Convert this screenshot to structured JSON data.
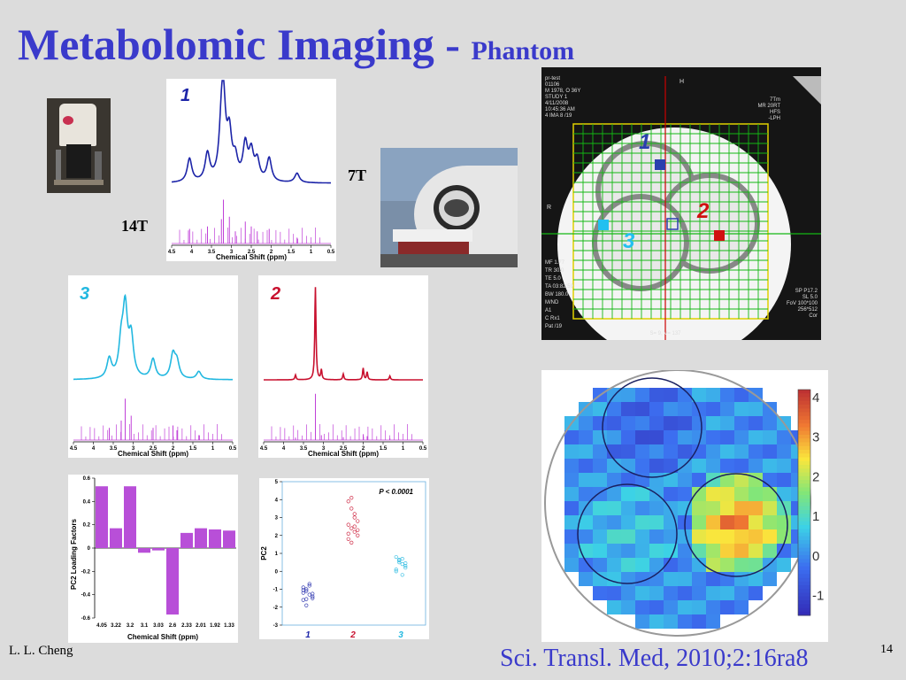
{
  "slide": {
    "title": "Metabolomic Imaging -",
    "title_sub": "Phantom",
    "author": "L. L. Cheng",
    "citation": "Sci. Transl. Med, 2010;2:16ra8",
    "slide_number": "14",
    "label_14t": "14T",
    "label_7t": "7T"
  },
  "colors": {
    "title": "#3a3acb",
    "phantom1": "#1c24a8",
    "phantom2": "#c8102e",
    "phantom3": "#22b8e0",
    "reference": "#c040d8",
    "bars": "#b84fd8"
  },
  "icons": {
    "photo_14t": "magnet-14t-photo",
    "photo_7t": "mri-scanner-7t-photo"
  },
  "chart_data": [
    {
      "type": "line",
      "panel": "spectrum-1",
      "label": "1",
      "xlabel": "Chemical Shift (ppm)",
      "xticks": [
        "4.5",
        "4",
        "3.5",
        "3",
        "2.5",
        "2",
        "1.5",
        "1",
        "0.5"
      ],
      "xlim": [
        4.5,
        0.5
      ],
      "peaks": [
        [
          4.05,
          0.3
        ],
        [
          3.6,
          0.35
        ],
        [
          3.25,
          0.5
        ],
        [
          3.2,
          0.9
        ],
        [
          3.05,
          0.55
        ],
        [
          2.9,
          0.25
        ],
        [
          2.65,
          0.45
        ],
        [
          2.5,
          0.35
        ],
        [
          2.35,
          0.25
        ],
        [
          2.05,
          0.3
        ],
        [
          1.35,
          0.12
        ]
      ]
    },
    {
      "type": "line",
      "panel": "spectrum-3",
      "label": "3",
      "xlabel": "Chemical Shift (ppm)",
      "xticks": [
        "4.5",
        "4",
        "3.5",
        "3",
        "2.5",
        "2",
        "1.5",
        "1",
        "0.5"
      ],
      "xlim": [
        4.5,
        0.5
      ],
      "peaks": [
        [
          3.6,
          0.25
        ],
        [
          3.3,
          0.4
        ],
        [
          3.2,
          0.85
        ],
        [
          3.05,
          0.5
        ],
        [
          2.5,
          0.25
        ],
        [
          2.0,
          0.3
        ],
        [
          1.9,
          0.2
        ],
        [
          1.35,
          0.1
        ]
      ]
    },
    {
      "type": "line",
      "panel": "spectrum-2",
      "label": "2",
      "xlabel": "Chemical Shift (ppm)",
      "xticks": [
        "4.5",
        "4",
        "3.5",
        "3",
        "2.5",
        "2",
        "1.5",
        "1",
        "0.5"
      ],
      "xlim": [
        4.5,
        0.5
      ],
      "peaks": [
        [
          3.7,
          0.05
        ],
        [
          3.2,
          0.95
        ],
        [
          3.05,
          0.1
        ],
        [
          2.5,
          0.06
        ],
        [
          2.0,
          0.12
        ],
        [
          1.9,
          0.08
        ],
        [
          1.33,
          0.04
        ]
      ]
    },
    {
      "type": "bar",
      "panel": "pc2-loadings",
      "ylabel": "PC2 Loading Factors",
      "xlabel": "Chemical Shift (ppm)",
      "categories": [
        "4.05",
        "3.22",
        "3.2",
        "3.1",
        "3.03",
        "2.6",
        "2.33",
        "2.01",
        "1.92",
        "1.33"
      ],
      "values": [
        0.53,
        0.17,
        0.53,
        -0.04,
        -0.02,
        -0.57,
        0.13,
        0.17,
        0.16,
        0.15
      ],
      "yticks": [
        "0.6",
        "0.4",
        "0.2",
        "0",
        "-0.2",
        "-0.4",
        "-0.6"
      ],
      "ylim": [
        -0.6,
        0.6
      ]
    },
    {
      "type": "scatter",
      "panel": "pc2-scores",
      "ylabel": "PC2",
      "annotation": "P < 0.0001",
      "yticks": [
        "5",
        "4",
        "3",
        "2",
        "1",
        "0",
        "-1",
        "-2",
        "-3"
      ],
      "ylim": [
        -3,
        5
      ],
      "groups": [
        {
          "name": "1",
          "values": [
            -0.9,
            -1.1,
            -1.3,
            -1.5,
            -1.2,
            -1.0,
            -0.8,
            -1.4,
            -1.6,
            -1.9,
            -0.7,
            -1.25,
            -1.05,
            -1.55
          ]
        },
        {
          "name": "2",
          "values": [
            3.9,
            3.5,
            3.0,
            2.8,
            2.6,
            2.4,
            2.2,
            2.0,
            1.8,
            1.6,
            2.5,
            2.3,
            2.1,
            4.1,
            3.2
          ]
        },
        {
          "name": "3",
          "values": [
            0.8,
            0.6,
            0.4,
            0.2,
            0.0,
            0.5,
            0.7,
            0.3,
            0.1,
            0.65,
            -0.2,
            0.45
          ]
        }
      ]
    },
    {
      "type": "heatmap",
      "panel": "pc2-map",
      "colorbar_ticks": [
        "4",
        "3",
        "2",
        "1",
        "0",
        "-1"
      ],
      "zlim": [
        -1.5,
        4.2
      ]
    }
  ],
  "mri": {
    "overlay_lines": [
      "pr-test",
      "01106",
      "M 1978, O 36Y",
      "STUDY 1",
      "4/11/2008",
      "10:45:36 AM",
      "4 IMA 8 /19"
    ],
    "overlay_right": [
      "7Tm",
      "MR 20RT",
      "HFS",
      "-LPH"
    ],
    "overlay_left_bottom": [
      "MF 1.77",
      "TR 30.0",
      "TE 5.0",
      "TA 03:82:59",
      "BW 180.0",
      "M/ND",
      "A1",
      "C Rx1",
      "Pat /19"
    ],
    "overlay_right_bottom": [
      "SP P17.2",
      "SL 5.0",
      "FoV 100*100",
      "256*512",
      "Cor"
    ],
    "overlay_bottom": "S= 9, V= 137",
    "top_marker": "H",
    "left_marker": "R",
    "labels": [
      "1",
      "2",
      "3"
    ]
  }
}
